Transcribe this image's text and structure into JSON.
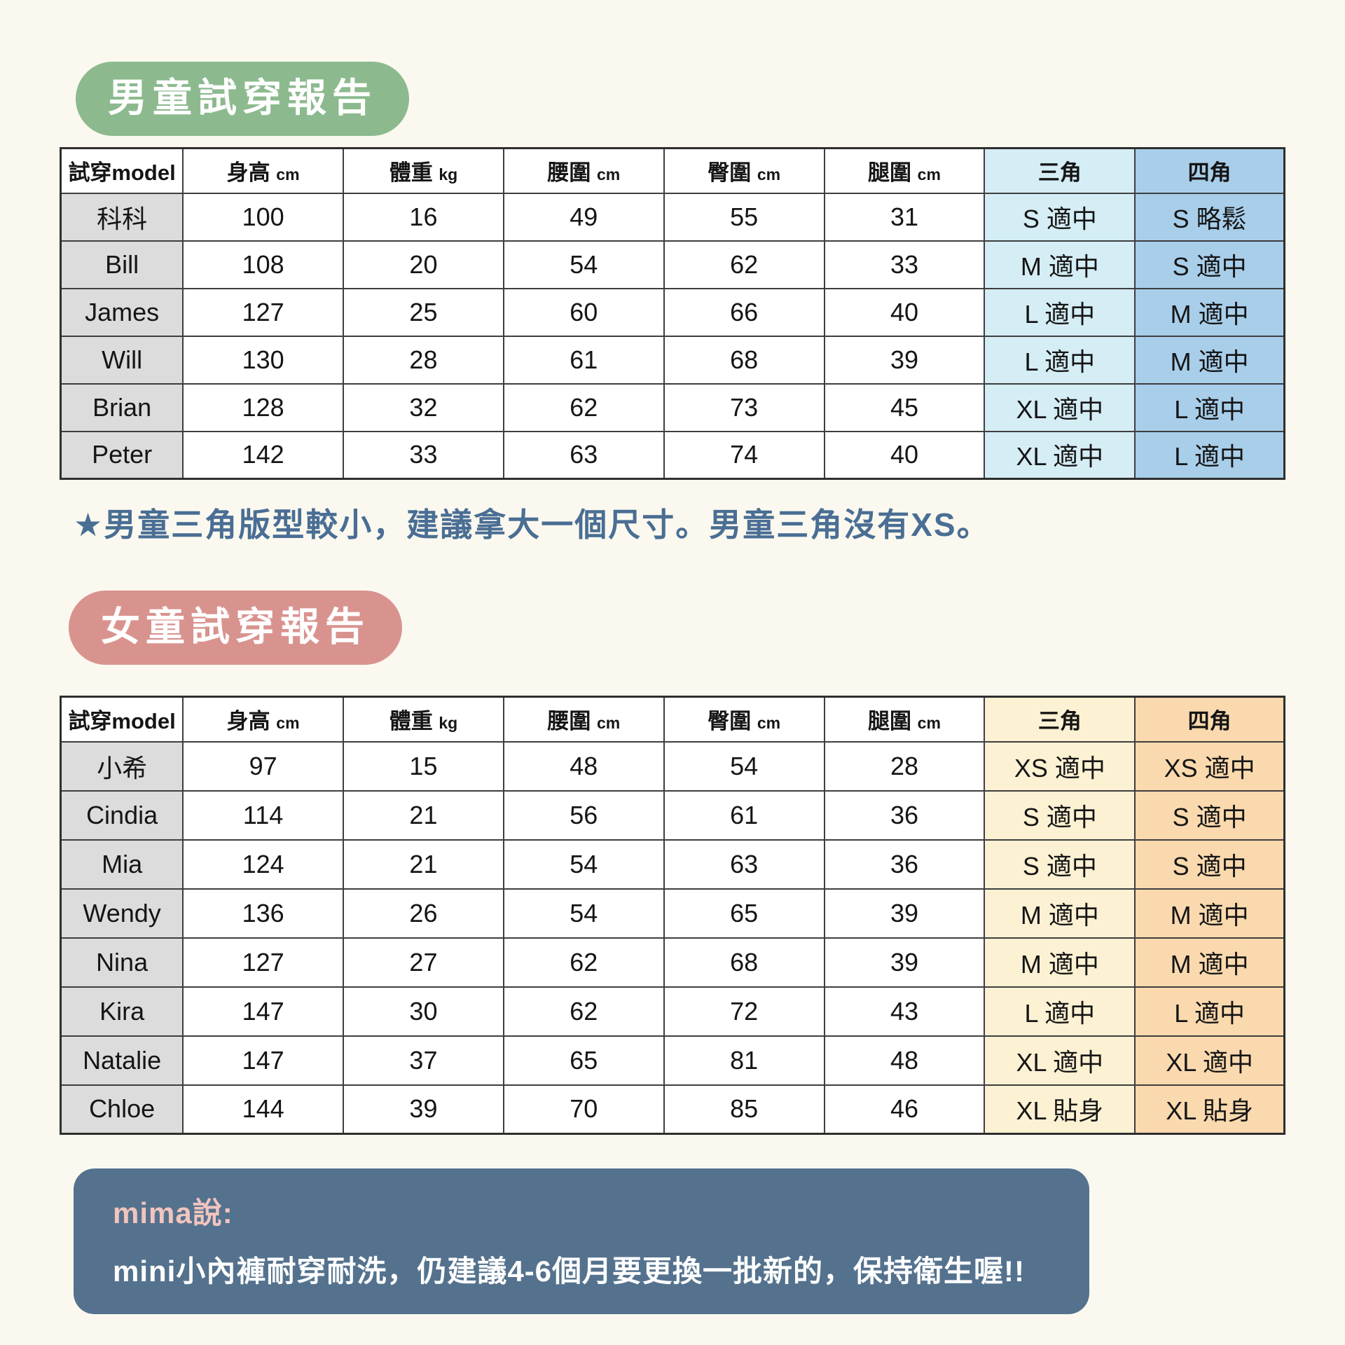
{
  "colors": {
    "page_bg": "#FBF9EF",
    "boys_badge": "#8CBA8E",
    "girls_badge": "#D9938F",
    "boys_tri": "#D5EDF5",
    "boys_box": "#A8CEEA",
    "girls_tri": "#FCF1D3",
    "girls_box": "#FAD9AE",
    "header_gray": "#DCDCDC",
    "note_blue": "#4A6E94",
    "footer_bg": "#54728E",
    "footer_pink": "#F2C4BE"
  },
  "table_header": {
    "model": "試穿model",
    "cols": [
      {
        "label": "身高",
        "unit": "cm"
      },
      {
        "label": "體重",
        "unit": "kg"
      },
      {
        "label": "腰圍",
        "unit": "cm"
      },
      {
        "label": "臀圍",
        "unit": "cm"
      },
      {
        "label": "腿圍",
        "unit": "cm"
      }
    ],
    "triangle": "三角",
    "boxer": "四角"
  },
  "boys": {
    "badge": "男童試穿報告",
    "note": "★男童三角版型較小，建議拿大一個尺寸。男童三角沒有XS。",
    "rows": [
      {
        "name": "科科",
        "height": "100",
        "weight": "16",
        "waist": "49",
        "hip": "55",
        "thigh": "31",
        "triangle": "S 適中",
        "boxer": "S 略鬆"
      },
      {
        "name": "Bill",
        "height": "108",
        "weight": "20",
        "waist": "54",
        "hip": "62",
        "thigh": "33",
        "triangle": "M 適中",
        "boxer": "S 適中"
      },
      {
        "name": "James",
        "height": "127",
        "weight": "25",
        "waist": "60",
        "hip": "66",
        "thigh": "40",
        "triangle": "L 適中",
        "boxer": "M 適中"
      },
      {
        "name": "Will",
        "height": "130",
        "weight": "28",
        "waist": "61",
        "hip": "68",
        "thigh": "39",
        "triangle": "L 適中",
        "boxer": "M 適中"
      },
      {
        "name": "Brian",
        "height": "128",
        "weight": "32",
        "waist": "62",
        "hip": "73",
        "thigh": "45",
        "triangle": "XL 適中",
        "boxer": "L 適中"
      },
      {
        "name": "Peter",
        "height": "142",
        "weight": "33",
        "waist": "63",
        "hip": "74",
        "thigh": "40",
        "triangle": "XL 適中",
        "boxer": "L 適中"
      }
    ]
  },
  "girls": {
    "badge": "女童試穿報告",
    "rows": [
      {
        "name": "小希",
        "height": "97",
        "weight": "15",
        "waist": "48",
        "hip": "54",
        "thigh": "28",
        "triangle": "XS 適中",
        "boxer": "XS 適中"
      },
      {
        "name": "Cindia",
        "height": "114",
        "weight": "21",
        "waist": "56",
        "hip": "61",
        "thigh": "36",
        "triangle": "S 適中",
        "boxer": "S 適中"
      },
      {
        "name": "Mia",
        "height": "124",
        "weight": "21",
        "waist": "54",
        "hip": "63",
        "thigh": "36",
        "triangle": "S 適中",
        "boxer": "S 適中"
      },
      {
        "name": "Wendy",
        "height": "136",
        "weight": "26",
        "waist": "54",
        "hip": "65",
        "thigh": "39",
        "triangle": "M 適中",
        "boxer": "M 適中"
      },
      {
        "name": "Nina",
        "height": "127",
        "weight": "27",
        "waist": "62",
        "hip": "68",
        "thigh": "39",
        "triangle": "M 適中",
        "boxer": "M 適中"
      },
      {
        "name": "Kira",
        "height": "147",
        "weight": "30",
        "waist": "62",
        "hip": "72",
        "thigh": "43",
        "triangle": "L 適中",
        "boxer": "L 適中"
      },
      {
        "name": "Natalie",
        "height": "147",
        "weight": "37",
        "waist": "65",
        "hip": "81",
        "thigh": "48",
        "triangle": "XL 適中",
        "boxer": "XL 適中"
      },
      {
        "name": "Chloe",
        "height": "144",
        "weight": "39",
        "waist": "70",
        "hip": "85",
        "thigh": "46",
        "triangle": "XL 貼身",
        "boxer": "XL 貼身"
      }
    ]
  },
  "footer": {
    "speaker": "mima說:",
    "text": "mini小內褲耐穿耐洗，仍建議4-6個月要更換一批新的，保持衛生喔!!"
  }
}
